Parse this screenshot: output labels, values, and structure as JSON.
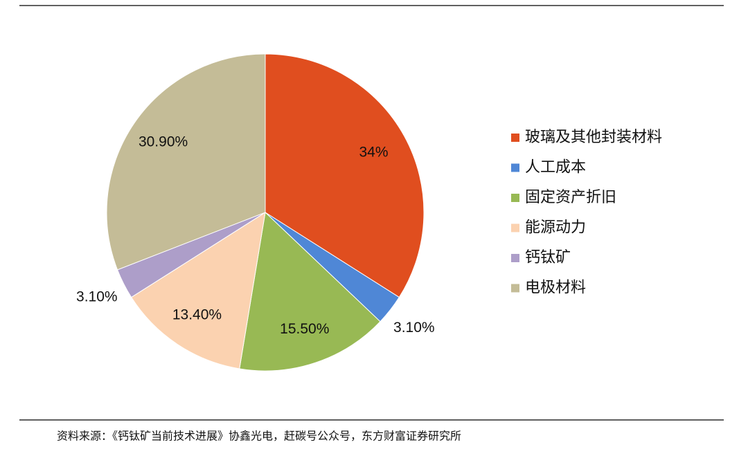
{
  "chart_data": {
    "type": "pie",
    "categories": [
      "玻璃及其他封装材料",
      "人工成本",
      "固定资产折旧",
      "能源动力",
      "钙钛矿",
      "电极材料"
    ],
    "values": [
      34,
      3.1,
      15.5,
      13.4,
      3.1,
      30.9
    ],
    "value_labels": [
      "34%",
      "3.10%",
      "15.50%",
      "13.40%",
      "3.10%",
      "30.90%"
    ],
    "colors": [
      "#e04e1f",
      "#4f87d6",
      "#98b954",
      "#fbd2b0",
      "#ad9ec9",
      "#c4bc97"
    ],
    "legend": "right",
    "source": "资料来源：《钙钛矿当前技术进展》协鑫光电，赶碳号公众号，东方财富证券研究所"
  }
}
